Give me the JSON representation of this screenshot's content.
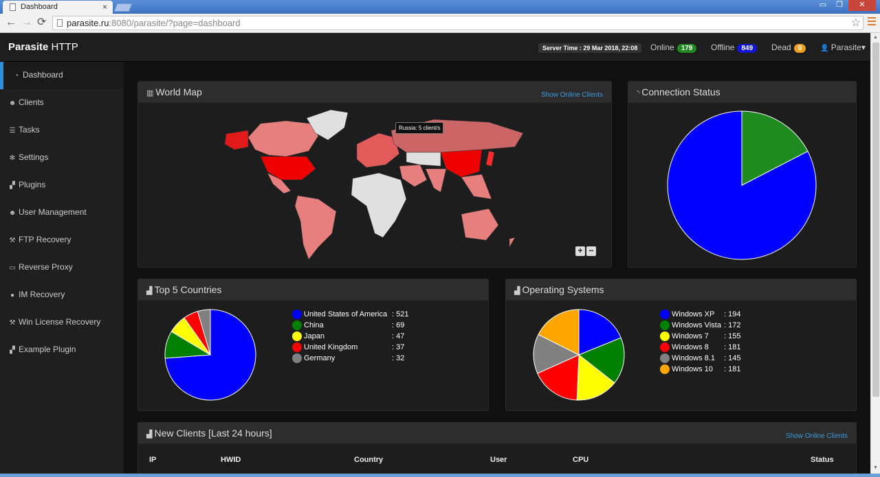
{
  "browser": {
    "tab_title": "Dashboard",
    "tab_close": "×",
    "url_host": "parasite.ru",
    "url_path": ":8080/parasite/?page=dashboard",
    "back": "←",
    "forward": "→",
    "reload": "⟳",
    "star": "☆",
    "win_min": "▭",
    "win_restore": "❐",
    "win_close": "✕"
  },
  "navbar": {
    "brand_bold": "Parasite",
    "brand_rest": " HTTP",
    "server_time": "Server Time : 29 Mar 2018, 22:08",
    "online_label": "Online",
    "online_count": "179",
    "offline_label": "Offline",
    "offline_count": "849",
    "dead_label": "Dead",
    "dead_count": "0",
    "user_icon": "👤",
    "user_name": "Parasite",
    "user_caret": "▾",
    "colors": {
      "online": "#1f8a1f",
      "offline": "#1515d6",
      "dead": "#f0a020"
    }
  },
  "sidebar": {
    "items": [
      {
        "label": "Dashboard",
        "icon": "dashboard-icon",
        "glyph": "◔"
      },
      {
        "label": "Clients",
        "icon": "users-icon",
        "glyph": "☻"
      },
      {
        "label": "Tasks",
        "icon": "tasks-icon",
        "glyph": "☰"
      },
      {
        "label": "Settings",
        "icon": "gear-icon",
        "glyph": "✻"
      },
      {
        "label": "Plugins",
        "icon": "puzzle-icon",
        "glyph": "▞"
      },
      {
        "label": "User Management",
        "icon": "users-icon",
        "glyph": "☻"
      },
      {
        "label": "FTP Recovery",
        "icon": "wrench-icon",
        "glyph": "⚒"
      },
      {
        "label": "Reverse Proxy",
        "icon": "desktop-icon",
        "glyph": "▭"
      },
      {
        "label": "IM Recovery",
        "icon": "chat-icon",
        "glyph": "●"
      },
      {
        "label": "Win License Recovery",
        "icon": "wrench-icon",
        "glyph": "⚒"
      },
      {
        "label": "Example Plugin",
        "icon": "puzzle-icon",
        "glyph": "▞"
      }
    ]
  },
  "world_map": {
    "title": "World Map",
    "link": "Show Online Clients",
    "tooltip": "Russia: 5 client/s",
    "zoom_in": "+",
    "zoom_out": "−"
  },
  "connection_status": {
    "title": "Connection Status"
  },
  "top_countries": {
    "title": "Top 5 Countries"
  },
  "operating_systems": {
    "title": "Operating Systems"
  },
  "new_clients": {
    "title": "New Clients [Last 24 hours]",
    "link": "Show Online Clients",
    "columns": [
      "IP",
      "HWID",
      "Country",
      "User",
      "CPU",
      "Status"
    ]
  },
  "chart_data": [
    {
      "type": "pie",
      "title": "Connection Status",
      "slices": [
        {
          "value": 179,
          "color": "#1f8a1f"
        },
        {
          "value": 849,
          "color": "#0000ff"
        }
      ]
    },
    {
      "type": "pie",
      "title": "Top 5 Countries",
      "slices": [
        {
          "label": "United States of America",
          "value": 521,
          "color": "#0000ff"
        },
        {
          "label": "China",
          "value": 69,
          "color": "#008000"
        },
        {
          "label": "Japan",
          "value": 47,
          "color": "#ffff00"
        },
        {
          "label": "United Kingdom",
          "value": 37,
          "color": "#ff0000"
        },
        {
          "label": "Germany",
          "value": 32,
          "color": "#808080"
        }
      ]
    },
    {
      "type": "pie",
      "title": "Operating Systems",
      "slices": [
        {
          "label": "Windows XP",
          "value": 194,
          "color": "#0000ff"
        },
        {
          "label": "Windows Vista",
          "value": 172,
          "color": "#008000"
        },
        {
          "label": "Windows 7",
          "value": 155,
          "color": "#ffff00"
        },
        {
          "label": "Windows 8",
          "value": 181,
          "color": "#ff0000"
        },
        {
          "label": "Windows 8.1",
          "value": 145,
          "color": "#808080"
        },
        {
          "label": "Windows 10",
          "value": 181,
          "color": "#ffa500"
        }
      ]
    }
  ]
}
